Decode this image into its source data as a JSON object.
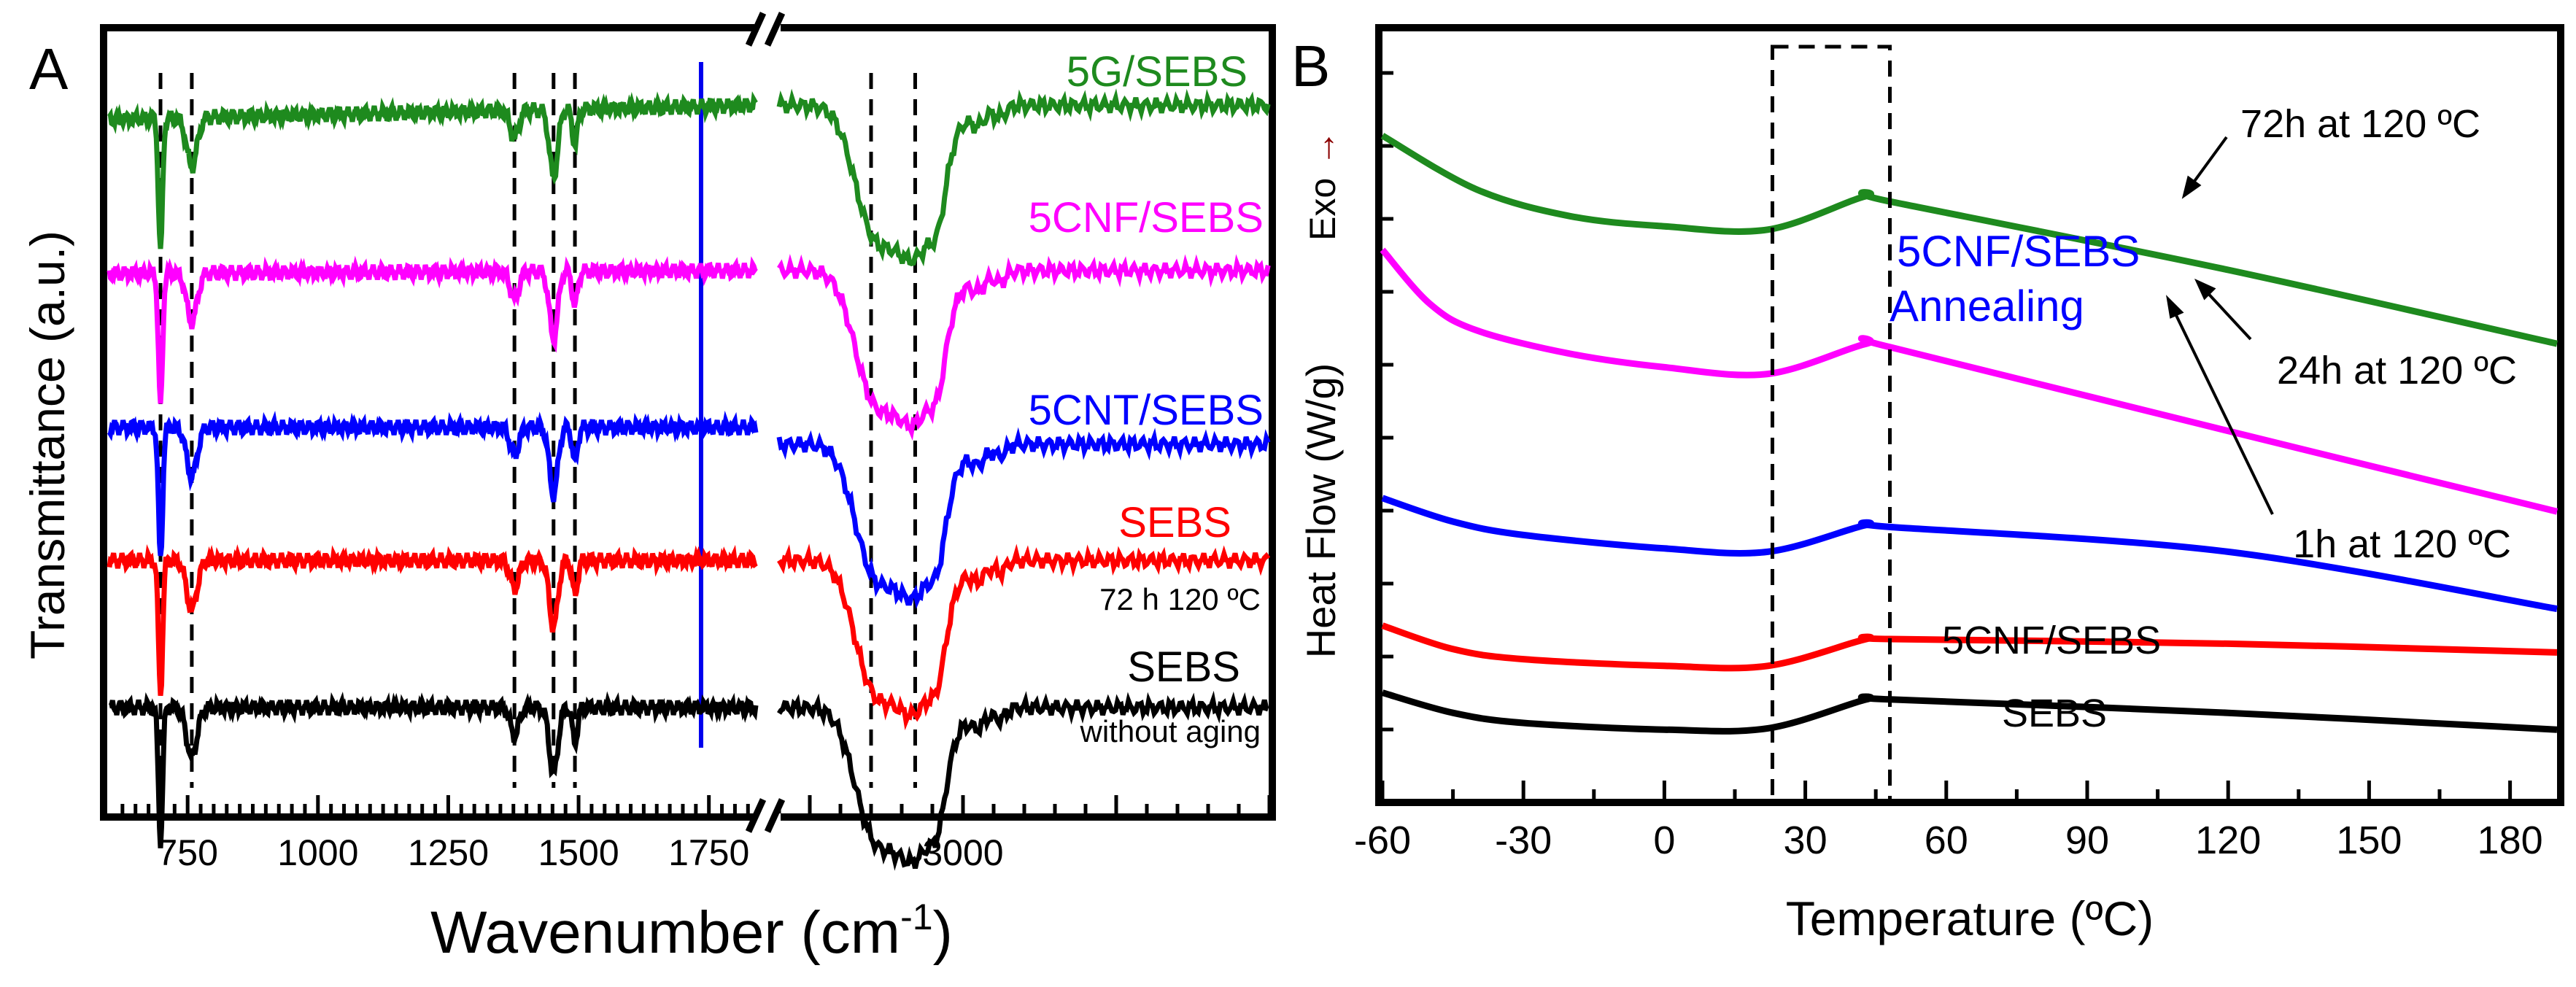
{
  "chart_data": [
    {
      "panel": "A",
      "type": "line",
      "title": "",
      "xlabel": "Wavenumber (cm⁻¹)",
      "xlabel_main": "Wavenumber (cm",
      "xlabel_exp": "-1",
      "xlabel_close": ")",
      "ylabel": "Transmittance (a.u.)",
      "axis_break": true,
      "xlim": [
        600,
        3500
      ],
      "xtick_labels": [
        {
          "value": 750,
          "label": "750"
        },
        {
          "value": 1000,
          "label": "1000"
        },
        {
          "value": 1250,
          "label": "1250"
        },
        {
          "value": 1500,
          "label": "1500"
        },
        {
          "value": 1750,
          "label": "1750"
        },
        {
          "value": 3000,
          "label": "3000"
        }
      ],
      "reference_lines_cm": [
        698,
        758,
        1377,
        1452,
        1493,
        2850,
        2922
      ],
      "highlight_line_cm": 1735,
      "highlight_color": "#0000ee",
      "series": [
        {
          "name": "5G/SEBS",
          "color": "#1e8a1e",
          "offset": 4.2
        },
        {
          "name": "5CNF/SEBS",
          "color": "#ff00ff",
          "offset": 3.1
        },
        {
          "name": "5CNT/SEBS",
          "color": "#0000ff",
          "offset": 2.0
        },
        {
          "name": "SEBS",
          "note": "72 h 120 ºC",
          "color": "#ff0000",
          "offset": 1.05
        },
        {
          "name": "SEBS",
          "note": "without aging",
          "color": "#000000",
          "offset": 0.0
        }
      ]
    },
    {
      "panel": "B",
      "type": "line",
      "title": "",
      "xlabel": "Temperature (ºC)",
      "ylabel": "Heat Flow (W/g)",
      "ylabel_exo": "Exo",
      "exo_arrow": "→",
      "exo_arrow_color": "#8b0000",
      "xlim": [
        -60,
        190
      ],
      "xticks": [
        -60,
        -30,
        0,
        30,
        60,
        90,
        120,
        150,
        180
      ],
      "glass_transition_window": [
        23,
        48
      ],
      "series": [
        {
          "name": "72h at 120 ºC",
          "color": "#1e8a1e",
          "points": [
            [
              -60,
              95
            ],
            [
              -40,
              87
            ],
            [
              -20,
              83
            ],
            [
              0,
              81.5
            ],
            [
              22,
              81
            ],
            [
              43,
              86
            ],
            [
              48,
              85.2
            ],
            [
              120,
              75
            ],
            [
              190,
              64
            ]
          ]
        },
        {
          "name": "24h at 120 ºC",
          "color": "#ff00ff",
          "points": [
            [
              -60,
              78
            ],
            [
              -50,
              70
            ],
            [
              -40,
              66
            ],
            [
              -20,
              62.5
            ],
            [
              0,
              60.5
            ],
            [
              22,
              59.5
            ],
            [
              43,
              64
            ],
            [
              48,
              63.5
            ],
            [
              120,
              51
            ],
            [
              190,
              39
            ]
          ]
        },
        {
          "name": "1h at 120 ºC",
          "color": "#0000ff",
          "points": [
            [
              -60,
              41
            ],
            [
              -45,
              37.5
            ],
            [
              -30,
              35.5
            ],
            [
              0,
              33.5
            ],
            [
              22,
              33
            ],
            [
              43,
              37
            ],
            [
              48,
              36.7
            ],
            [
              120,
              33
            ],
            [
              190,
              24.5
            ]
          ]
        },
        {
          "name": "5CNF/SEBS",
          "color": "#ff0000",
          "points": [
            [
              -60,
              22
            ],
            [
              -45,
              18.5
            ],
            [
              -30,
              17
            ],
            [
              0,
              16
            ],
            [
              22,
              16
            ],
            [
              43,
              20
            ],
            [
              48,
              20
            ],
            [
              120,
              19.3
            ],
            [
              190,
              18
            ]
          ]
        },
        {
          "name": "SEBS",
          "color": "#000000",
          "points": [
            [
              -60,
              12
            ],
            [
              -45,
              9
            ],
            [
              -30,
              7.5
            ],
            [
              0,
              6.5
            ],
            [
              22,
              6.7
            ],
            [
              43,
              11
            ],
            [
              48,
              11
            ],
            [
              120,
              9
            ],
            [
              190,
              6.5
            ]
          ]
        }
      ],
      "annotations": {
        "label_72h": "72h at 120 ºC",
        "label_24h": "24h at 120 ºC",
        "label_1h": "1h at 120 ºC",
        "label_5cnf": "5CNF/SEBS",
        "label_sebs": "SEBS",
        "annealing_title": "5CNF/SEBS",
        "annealing_sub": "Annealing",
        "annealing_color": "#0000ff"
      }
    }
  ]
}
